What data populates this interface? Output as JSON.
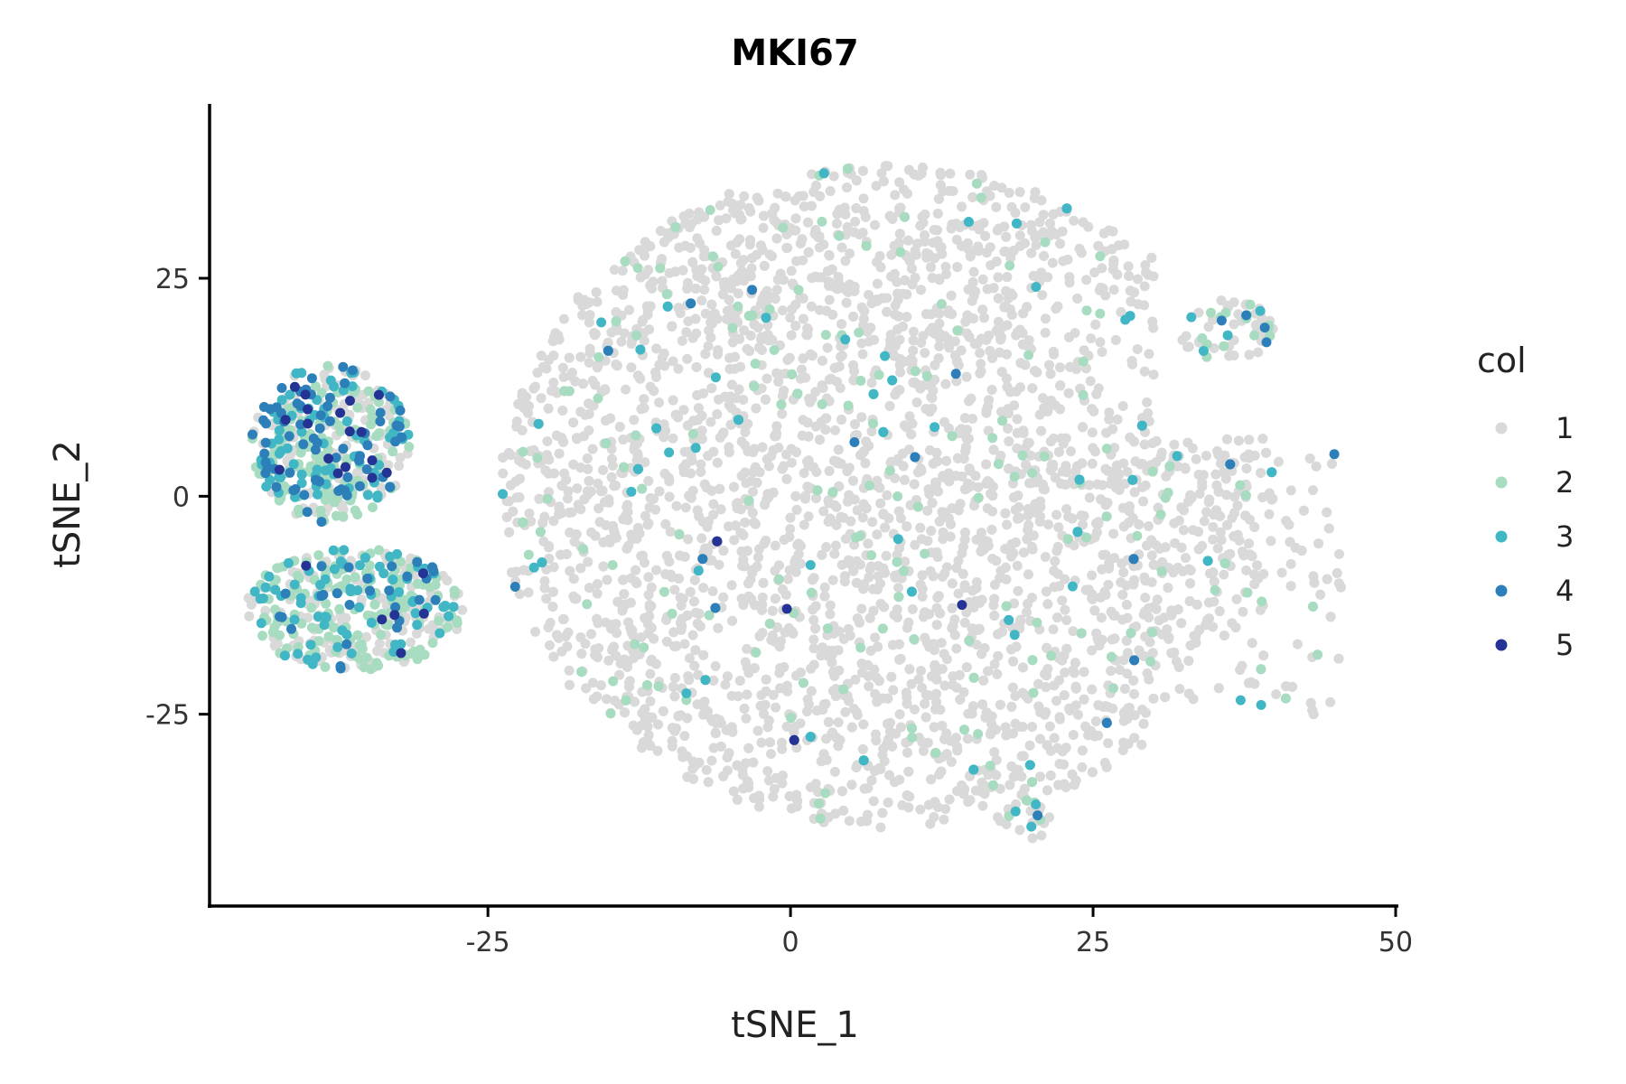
{
  "chart_data": {
    "type": "scatter",
    "title": "MKI67",
    "xlabel": "tSNE_1",
    "ylabel": "tSNE_2",
    "xlim": [
      -48,
      50
    ],
    "ylim": [
      -47,
      45
    ],
    "x_ticks": [
      -25,
      0,
      25,
      50
    ],
    "y_ticks": [
      -25,
      0,
      25
    ],
    "grid": false,
    "legend": {
      "title": "col",
      "position": "right",
      "entries": [
        {
          "label": "1",
          "color": "#d9d9d9"
        },
        {
          "label": "2",
          "color": "#a8dcc0"
        },
        {
          "label": "3",
          "color": "#41b6c4"
        },
        {
          "label": "4",
          "color": "#2c7fb8"
        },
        {
          "label": "5",
          "color": "#253494"
        }
      ]
    },
    "clusters": [
      {
        "name": "main-cloud",
        "cx": 8,
        "cy": 0,
        "rx": 32,
        "ry": 38,
        "n": 5200,
        "level_weights": [
          0.93,
          0.05,
          0.012,
          0.006,
          0.002
        ]
      },
      {
        "name": "left-upper",
        "cx": -38,
        "cy": 6,
        "rx": 6.5,
        "ry": 9,
        "n": 420,
        "level_weights": [
          0.3,
          0.3,
          0.2,
          0.15,
          0.05
        ]
      },
      {
        "name": "left-lower",
        "cx": -36,
        "cy": -13,
        "rx": 9,
        "ry": 7,
        "n": 420,
        "level_weights": [
          0.35,
          0.4,
          0.18,
          0.05,
          0.02
        ]
      },
      {
        "name": "right-tip",
        "cx": 36,
        "cy": 19,
        "rx": 4,
        "ry": 3.5,
        "n": 60,
        "level_weights": [
          0.6,
          0.25,
          0.1,
          0.03,
          0.02
        ]
      },
      {
        "name": "bottom-right",
        "cx": 19.5,
        "cy": -37,
        "rx": 2.5,
        "ry": 2.5,
        "n": 25,
        "level_weights": [
          0.5,
          0.2,
          0.2,
          0.08,
          0.02
        ]
      }
    ]
  }
}
